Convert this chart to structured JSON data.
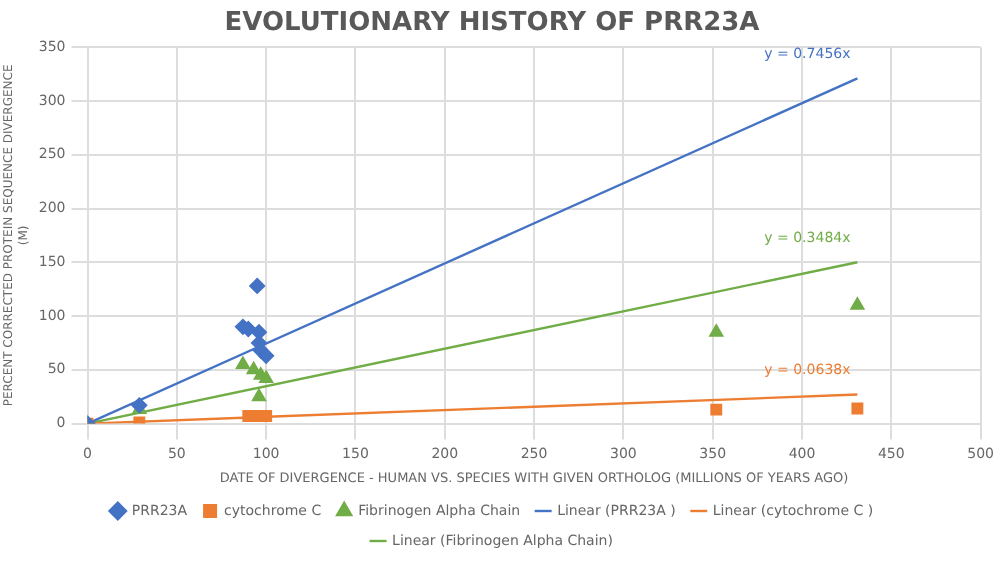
{
  "chart_data": {
    "type": "scatter",
    "title": "EVOLUTIONARY HISTORY OF PRR23A",
    "xlabel": "DATE OF DIVERGENCE - HUMAN VS. SPECIES WITH GIVEN ORTHOLOG (MILLIONS OF YEARS AGO)",
    "ylabel": "PERCENT CORRECTED PROTEIN SEQUENCE DIVERGENCE (M)",
    "xlim": [
      0,
      500
    ],
    "xticks": [
      0,
      50,
      100,
      150,
      200,
      250,
      300,
      350,
      400,
      450,
      500
    ],
    "ylim": [
      0,
      350
    ],
    "yticks": [
      0,
      50,
      100,
      150,
      200,
      250,
      300,
      350
    ],
    "grid": true,
    "legend": "bottom",
    "series": [
      {
        "name": "PRR23A",
        "color": "#4472c4",
        "marker": "diamond",
        "x": [
          0,
          29,
          87,
          90,
          95,
          96,
          96,
          97,
          100
        ],
        "values": [
          0,
          17,
          90,
          88,
          128,
          85,
          75,
          68,
          63
        ]
      },
      {
        "name": "cytochrome C",
        "color": "#ed7d31",
        "marker": "square",
        "x": [
          0,
          29,
          90,
          96,
          100,
          352,
          431
        ],
        "values": [
          0,
          1,
          7,
          7,
          7,
          13,
          14
        ]
      },
      {
        "name": "Fibrinogen Alpha Chain",
        "color": "#70ad47",
        "marker": "triangle",
        "x": [
          0,
          29,
          87,
          93,
          96,
          97,
          100,
          352,
          431
        ],
        "values": [
          0,
          13,
          55,
          50,
          25,
          45,
          42,
          85,
          110
        ]
      },
      {
        "name": "Linear (PRR23A )",
        "type": "line",
        "color": "#4472c4",
        "marker": "none",
        "x": [
          0,
          431
        ],
        "values": [
          0,
          321
        ]
      },
      {
        "name": "Linear (cytochrome C )",
        "type": "line",
        "color": "#ed7d31",
        "marker": "none",
        "x": [
          0,
          431
        ],
        "values": [
          0,
          27
        ]
      },
      {
        "name": "Linear (Fibrinogen Alpha Chain)",
        "type": "line",
        "color": "#70ad47",
        "marker": "none",
        "x": [
          0,
          431
        ],
        "values": [
          0,
          150
        ]
      }
    ],
    "annotations": [
      "y = 0.7456x",
      "y = 0.0638x",
      "y = 0.3484x"
    ]
  }
}
